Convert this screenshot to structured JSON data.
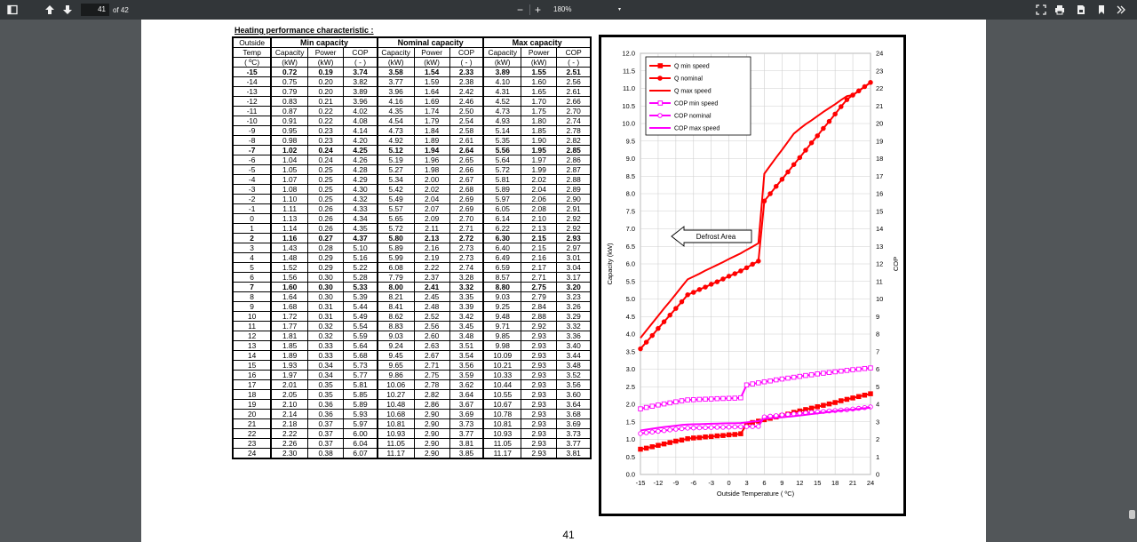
{
  "toolbar": {
    "page_current": "41",
    "page_of": "of 42",
    "zoom_minus": "−",
    "zoom_plus": "+",
    "zoom_value": "180%",
    "icons": [
      "sidebar-toggle-icon",
      "arrow-up-icon",
      "arrow-down-icon",
      "fit-page-icon",
      "print-icon",
      "download-icon",
      "bookmark-icon",
      "more-chevron-icon"
    ]
  },
  "document": {
    "heading": "Heating performance  characteristic  :",
    "page_number": "41"
  },
  "table": {
    "group_headers": [
      "Outside",
      "Min capacity",
      "Nominal capacity",
      "Max capacity"
    ],
    "sub_headers": [
      "Temp",
      "Capacity",
      "Power",
      "COP",
      "Capacity",
      "Power",
      "COP",
      "Capacity",
      "Power",
      "COP"
    ],
    "unit_headers": [
      "( ºC)",
      "(kW)",
      "(kW)",
      "( - )",
      "(kW)",
      "(kW)",
      "( - )",
      "(kW)",
      "(kW)",
      "( - )"
    ],
    "bold_rows": [
      "-15",
      "-7",
      "2",
      "7"
    ],
    "rows": [
      [
        "-15",
        "0.72",
        "0.19",
        "3.74",
        "3.58",
        "1.54",
        "2.33",
        "3.89",
        "1.55",
        "2.51"
      ],
      [
        "-14",
        "0.75",
        "0.20",
        "3.82",
        "3.77",
        "1.59",
        "2.38",
        "4.10",
        "1.60",
        "2.56"
      ],
      [
        "-13",
        "0.79",
        "0.20",
        "3.89",
        "3.96",
        "1.64",
        "2.42",
        "4.31",
        "1.65",
        "2.61"
      ],
      [
        "-12",
        "0.83",
        "0.21",
        "3.96",
        "4.16",
        "1.69",
        "2.46",
        "4.52",
        "1.70",
        "2.66"
      ],
      [
        "-11",
        "0.87",
        "0.22",
        "4.02",
        "4.35",
        "1.74",
        "2.50",
        "4.73",
        "1.75",
        "2.70"
      ],
      [
        "-10",
        "0.91",
        "0.22",
        "4.08",
        "4.54",
        "1.79",
        "2.54",
        "4.93",
        "1.80",
        "2.74"
      ],
      [
        "-9",
        "0.95",
        "0.23",
        "4.14",
        "4.73",
        "1.84",
        "2.58",
        "5.14",
        "1.85",
        "2.78"
      ],
      [
        "-8",
        "0.98",
        "0.23",
        "4.20",
        "4.92",
        "1.89",
        "2.61",
        "5.35",
        "1.90",
        "2.82"
      ],
      [
        "-7",
        "1.02",
        "0.24",
        "4.25",
        "5.12",
        "1.94",
        "2.64",
        "5.56",
        "1.95",
        "2.85"
      ],
      [
        "-6",
        "1.04",
        "0.24",
        "4.26",
        "5.19",
        "1.96",
        "2.65",
        "5.64",
        "1.97",
        "2.86"
      ],
      [
        "-5",
        "1.05",
        "0.25",
        "4.28",
        "5.27",
        "1.98",
        "2.66",
        "5.72",
        "1.99",
        "2.87"
      ],
      [
        "-4",
        "1.07",
        "0.25",
        "4.29",
        "5.34",
        "2.00",
        "2.67",
        "5.81",
        "2.02",
        "2.88"
      ],
      [
        "-3",
        "1.08",
        "0.25",
        "4.30",
        "5.42",
        "2.02",
        "2.68",
        "5.89",
        "2.04",
        "2.89"
      ],
      [
        "-2",
        "1.10",
        "0.25",
        "4.32",
        "5.49",
        "2.04",
        "2.69",
        "5.97",
        "2.06",
        "2.90"
      ],
      [
        "-1",
        "1.11",
        "0.26",
        "4.33",
        "5.57",
        "2.07",
        "2.69",
        "6.05",
        "2.08",
        "2.91"
      ],
      [
        "0",
        "1.13",
        "0.26",
        "4.34",
        "5.65",
        "2.09",
        "2.70",
        "6.14",
        "2.10",
        "2.92"
      ],
      [
        "1",
        "1.14",
        "0.26",
        "4.35",
        "5.72",
        "2.11",
        "2.71",
        "6.22",
        "2.13",
        "2.92"
      ],
      [
        "2",
        "1.16",
        "0.27",
        "4.37",
        "5.80",
        "2.13",
        "2.72",
        "6.30",
        "2.15",
        "2.93"
      ],
      [
        "3",
        "1.43",
        "0.28",
        "5.10",
        "5.89",
        "2.16",
        "2.73",
        "6.40",
        "2.15",
        "2.97"
      ],
      [
        "4",
        "1.48",
        "0.29",
        "5.16",
        "5.99",
        "2.19",
        "2.73",
        "6.49",
        "2.16",
        "3.01"
      ],
      [
        "5",
        "1.52",
        "0.29",
        "5.22",
        "6.08",
        "2.22",
        "2.74",
        "6.59",
        "2.17",
        "3.04"
      ],
      [
        "6",
        "1.56",
        "0.30",
        "5.28",
        "7.79",
        "2.37",
        "3.28",
        "8.57",
        "2.71",
        "3.17"
      ],
      [
        "7",
        "1.60",
        "0.30",
        "5.33",
        "8.00",
        "2.41",
        "3.32",
        "8.80",
        "2.75",
        "3.20"
      ],
      [
        "8",
        "1.64",
        "0.30",
        "5.39",
        "8.21",
        "2.45",
        "3.35",
        "9.03",
        "2.79",
        "3.23"
      ],
      [
        "9",
        "1.68",
        "0.31",
        "5.44",
        "8.41",
        "2.48",
        "3.39",
        "9.25",
        "2.84",
        "3.26"
      ],
      [
        "10",
        "1.72",
        "0.31",
        "5.49",
        "8.62",
        "2.52",
        "3.42",
        "9.48",
        "2.88",
        "3.29"
      ],
      [
        "11",
        "1.77",
        "0.32",
        "5.54",
        "8.83",
        "2.56",
        "3.45",
        "9.71",
        "2.92",
        "3.32"
      ],
      [
        "12",
        "1.81",
        "0.32",
        "5.59",
        "9.03",
        "2.60",
        "3.48",
        "9.85",
        "2.93",
        "3.36"
      ],
      [
        "13",
        "1.85",
        "0.33",
        "5.64",
        "9.24",
        "2.63",
        "3.51",
        "9.98",
        "2.93",
        "3.40"
      ],
      [
        "14",
        "1.89",
        "0.33",
        "5.68",
        "9.45",
        "2.67",
        "3.54",
        "10.09",
        "2.93",
        "3.44"
      ],
      [
        "15",
        "1.93",
        "0.34",
        "5.73",
        "9.65",
        "2.71",
        "3.56",
        "10.21",
        "2.93",
        "3.48"
      ],
      [
        "16",
        "1.97",
        "0.34",
        "5.77",
        "9.86",
        "2.75",
        "3.59",
        "10.33",
        "2.93",
        "3.52"
      ],
      [
        "17",
        "2.01",
        "0.35",
        "5.81",
        "10.06",
        "2.78",
        "3.62",
        "10.44",
        "2.93",
        "3.56"
      ],
      [
        "18",
        "2.05",
        "0.35",
        "5.85",
        "10.27",
        "2.82",
        "3.64",
        "10.55",
        "2.93",
        "3.60"
      ],
      [
        "19",
        "2.10",
        "0.36",
        "5.89",
        "10.48",
        "2.86",
        "3.67",
        "10.67",
        "2.93",
        "3.64"
      ],
      [
        "20",
        "2.14",
        "0.36",
        "5.93",
        "10.68",
        "2.90",
        "3.69",
        "10.78",
        "2.93",
        "3.68"
      ],
      [
        "21",
        "2.18",
        "0.37",
        "5.97",
        "10.81",
        "2.90",
        "3.73",
        "10.81",
        "2.93",
        "3.69"
      ],
      [
        "22",
        "2.22",
        "0.37",
        "6.00",
        "10.93",
        "2.90",
        "3.77",
        "10.93",
        "2.93",
        "3.73"
      ],
      [
        "23",
        "2.26",
        "0.37",
        "6.04",
        "11.05",
        "2.90",
        "3.81",
        "11.05",
        "2.93",
        "3.77"
      ],
      [
        "24",
        "2.30",
        "0.38",
        "6.07",
        "11.17",
        "2.90",
        "3.85",
        "11.17",
        "2.93",
        "3.81"
      ]
    ]
  },
  "chart_data": {
    "type": "line",
    "title": "",
    "xlabel": "Outside Temperature ( ºC)",
    "ylabel_left": "Capacity (kW)",
    "ylabel_right": "COP",
    "xlim": [
      -15,
      24
    ],
    "ylim_left": [
      0,
      12
    ],
    "ylim_right": [
      0,
      24
    ],
    "xticks": [
      "-15",
      "-12",
      "-9",
      "-6",
      "-3",
      "0",
      "3",
      "6",
      "9",
      "12",
      "15",
      "18",
      "21",
      "24"
    ],
    "yticks_left": [
      "0.0",
      "0.5",
      "1.0",
      "1.5",
      "2.0",
      "2.5",
      "3.0",
      "3.5",
      "4.0",
      "4.5",
      "5.0",
      "5.5",
      "6.0",
      "6.5",
      "7.0",
      "7.5",
      "8.0",
      "8.5",
      "9.0",
      "9.5",
      "10.0",
      "10.5",
      "11.0",
      "11.5",
      "12.0"
    ],
    "yticks_right": [
      "0",
      "1",
      "2",
      "3",
      "4",
      "5",
      "6",
      "7",
      "8",
      "9",
      "10",
      "11",
      "12",
      "13",
      "14",
      "15",
      "16",
      "17",
      "18",
      "19",
      "20",
      "21",
      "22",
      "23",
      "24"
    ],
    "grid": true,
    "legend_position": "top-left",
    "annotation": "Defrost Area",
    "x": [
      -15,
      -14,
      -13,
      -12,
      -11,
      -10,
      -9,
      -8,
      -7,
      -6,
      -5,
      -4,
      -3,
      -2,
      -1,
      0,
      1,
      2,
      3,
      4,
      5,
      6,
      7,
      8,
      9,
      10,
      11,
      12,
      13,
      14,
      15,
      16,
      17,
      18,
      19,
      20,
      21,
      22,
      23,
      24
    ],
    "series": [
      {
        "name": "Q min speed",
        "axis": "left",
        "color": "#ff0000",
        "marker": "square-filled",
        "values": [
          0.72,
          0.75,
          0.79,
          0.83,
          0.87,
          0.91,
          0.95,
          0.98,
          1.02,
          1.04,
          1.05,
          1.07,
          1.08,
          1.1,
          1.11,
          1.13,
          1.14,
          1.16,
          1.43,
          1.48,
          1.52,
          1.56,
          1.6,
          1.64,
          1.68,
          1.72,
          1.77,
          1.81,
          1.85,
          1.89,
          1.93,
          1.97,
          2.01,
          2.05,
          2.1,
          2.14,
          2.18,
          2.22,
          2.26,
          2.3
        ]
      },
      {
        "name": "Q nominal",
        "axis": "left",
        "color": "#ff0000",
        "marker": "circle-filled",
        "values": [
          3.58,
          3.77,
          3.96,
          4.16,
          4.35,
          4.54,
          4.73,
          4.92,
          5.12,
          5.19,
          5.27,
          5.34,
          5.42,
          5.49,
          5.57,
          5.65,
          5.72,
          5.8,
          5.89,
          5.99,
          6.08,
          7.79,
          8.0,
          8.21,
          8.41,
          8.62,
          8.83,
          9.03,
          9.24,
          9.45,
          9.65,
          9.86,
          10.06,
          10.27,
          10.48,
          10.68,
          10.81,
          10.93,
          11.05,
          11.17
        ]
      },
      {
        "name": "Q max speed",
        "axis": "left",
        "color": "#ff0000",
        "marker": "none",
        "values": [
          3.89,
          4.1,
          4.31,
          4.52,
          4.73,
          4.93,
          5.14,
          5.35,
          5.56,
          5.64,
          5.72,
          5.81,
          5.89,
          5.97,
          6.05,
          6.14,
          6.22,
          6.3,
          6.4,
          6.49,
          6.59,
          8.57,
          8.8,
          9.03,
          9.25,
          9.48,
          9.71,
          9.85,
          9.98,
          10.09,
          10.21,
          10.33,
          10.44,
          10.55,
          10.67,
          10.78,
          10.81,
          10.93,
          11.05,
          11.17
        ]
      },
      {
        "name": "COP min speed",
        "axis": "right",
        "color": "#ff00ff",
        "marker": "square-open",
        "values": [
          3.74,
          3.82,
          3.89,
          3.96,
          4.02,
          4.08,
          4.14,
          4.2,
          4.25,
          4.26,
          4.28,
          4.29,
          4.3,
          4.32,
          4.33,
          4.34,
          4.35,
          4.37,
          5.1,
          5.16,
          5.22,
          5.28,
          5.33,
          5.39,
          5.44,
          5.49,
          5.54,
          5.59,
          5.64,
          5.68,
          5.73,
          5.77,
          5.81,
          5.85,
          5.89,
          5.93,
          5.97,
          6.0,
          6.04,
          6.07
        ]
      },
      {
        "name": "COP nominal",
        "axis": "right",
        "color": "#ff00ff",
        "marker": "circle-open",
        "values": [
          2.33,
          2.38,
          2.42,
          2.46,
          2.5,
          2.54,
          2.58,
          2.61,
          2.64,
          2.65,
          2.66,
          2.67,
          2.68,
          2.69,
          2.69,
          2.7,
          2.71,
          2.72,
          2.73,
          2.73,
          2.74,
          3.28,
          3.32,
          3.35,
          3.39,
          3.42,
          3.45,
          3.48,
          3.51,
          3.54,
          3.56,
          3.59,
          3.62,
          3.64,
          3.67,
          3.69,
          3.73,
          3.77,
          3.81,
          3.85
        ]
      },
      {
        "name": "COP max speed",
        "axis": "right",
        "color": "#ff00ff",
        "marker": "none",
        "values": [
          2.51,
          2.56,
          2.61,
          2.66,
          2.7,
          2.74,
          2.78,
          2.82,
          2.85,
          2.86,
          2.87,
          2.88,
          2.89,
          2.9,
          2.91,
          2.92,
          2.92,
          2.93,
          2.97,
          3.01,
          3.04,
          3.17,
          3.2,
          3.23,
          3.26,
          3.29,
          3.32,
          3.36,
          3.4,
          3.44,
          3.48,
          3.52,
          3.56,
          3.6,
          3.64,
          3.68,
          3.69,
          3.73,
          3.77,
          3.81
        ]
      }
    ]
  }
}
